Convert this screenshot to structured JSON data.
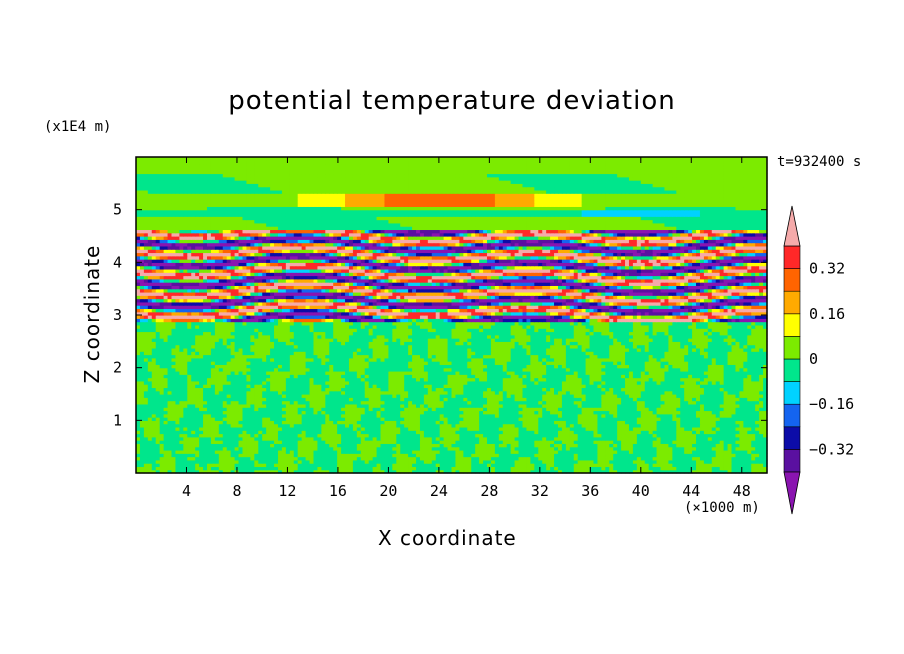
{
  "chart_data": {
    "type": "heatmap",
    "title": "potential temperature deviation",
    "xlabel": "X coordinate",
    "ylabel": "Z coordinate",
    "x_unit": "(×1000 m)",
    "y_unit": "(x1E4 m)",
    "time_label": "t=932400 s",
    "xlim": [
      0,
      50
    ],
    "ylim": [
      0,
      6
    ],
    "x_ticks": [
      "4",
      "8",
      "12",
      "16",
      "20",
      "24",
      "28",
      "32",
      "36",
      "40",
      "44",
      "48"
    ],
    "y_ticks": [
      "1",
      "2",
      "3",
      "4",
      "5"
    ],
    "colorbar": {
      "levels": [
        -0.4,
        -0.32,
        -0.24,
        -0.16,
        -0.08,
        0,
        0.08,
        0.16,
        0.24,
        0.32,
        0.4
      ],
      "tick_labels": [
        "0.32",
        "0.16",
        "0",
        "−0.16",
        "−0.32"
      ],
      "colors": [
        "#8a14b0",
        "#5a10a0",
        "#0c0ca8",
        "#1464f0",
        "#00d2ff",
        "#00e68c",
        "#7ceb00",
        "#ffff00",
        "#ffaa00",
        "#ff6400",
        "#ff2828",
        "#f5aaaa"
      ]
    },
    "layers": [
      {
        "z": [
          0,
          2.9
        ],
        "description": "near-zero mottled field (values between -0.08 and 0.08)"
      },
      {
        "z": [
          2.9,
          4.6
        ],
        "description": "strong alternating bands (|value| > 0.32)"
      },
      {
        "z": [
          4.6,
          6.0
        ],
        "description": "weak field with a warm band near z=5.2"
      }
    ]
  }
}
